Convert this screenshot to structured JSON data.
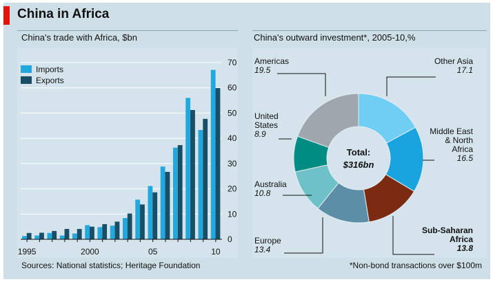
{
  "page": {
    "title": "China in Africa",
    "left_subtitle": "China's trade with Africa, $bn",
    "right_subtitle": "China's outward investment*, 2005-10,%",
    "source": "Sources: National statistics; Heritage Foundation",
    "footnote": "*Non-bond transactions over $100m"
  },
  "colors": {
    "frame": "#cfdfe7",
    "panel": "#d4e3ec",
    "imports": "#22a8dc",
    "exports": "#194f66",
    "grid": "#ffffff",
    "brand_red": "#e3120b"
  },
  "chart_data": [
    {
      "type": "bar",
      "title": "China's trade with Africa, $bn",
      "years": [
        1995,
        1996,
        1997,
        1998,
        1999,
        2000,
        2001,
        2002,
        2003,
        2004,
        2005,
        2006,
        2007,
        2008,
        2009,
        2010
      ],
      "x_tick_labels": [
        {
          "year": 1995,
          "label": "1995"
        },
        {
          "year": 2000,
          "label": "2000"
        },
        {
          "year": 2005,
          "label": "05"
        },
        {
          "year": 2010,
          "label": "10"
        }
      ],
      "series": [
        {
          "name": "Imports",
          "values": [
            1.3,
            1.5,
            2.5,
            1.5,
            2.3,
            5.6,
            4.8,
            5.4,
            8.4,
            15.7,
            21.1,
            28.8,
            36.3,
            56.0,
            43.3,
            67.1
          ]
        },
        {
          "name": "Exports",
          "values": [
            2.5,
            2.6,
            3.3,
            4.1,
            4.1,
            5.0,
            6.0,
            7.0,
            10.2,
            13.8,
            18.6,
            26.7,
            37.3,
            51.2,
            47.7,
            59.9
          ]
        }
      ],
      "y_ticks": [
        0,
        10,
        20,
        30,
        40,
        50,
        60,
        70
      ],
      "ylim": [
        0,
        70
      ],
      "legend": [
        "Imports",
        "Exports"
      ]
    },
    {
      "type": "pie",
      "variant": "donut",
      "title": "China's outward investment*, 2005-10,%",
      "center_label": "Total:",
      "center_value": "$316bn",
      "slices": [
        {
          "label": "Other Asia",
          "value": 17.1,
          "value_label": "17.1",
          "color": "#70cdf3"
        },
        {
          "label": "Middle East & North Africa",
          "value": 16.5,
          "value_label": "16.5",
          "color": "#1aa4df"
        },
        {
          "label": "Sub-Saharan Africa",
          "value": 13.8,
          "value_label": "13.8",
          "color": "#7a2b12"
        },
        {
          "label": "Europe",
          "value": 13.4,
          "value_label": "13.4",
          "color": "#5c8ea7"
        },
        {
          "label": "Australia",
          "value": 10.8,
          "value_label": "10.8",
          "color": "#6fc1c8"
        },
        {
          "label": "United States",
          "value": 8.9,
          "value_label": "8.9",
          "color": "#008c82"
        },
        {
          "label": "Americas",
          "value": 19.5,
          "value_label": "19.5",
          "color": "#9fa6ad"
        }
      ],
      "callouts": [
        {
          "name": "Other Asia",
          "lines": [
            "Other Asia"
          ],
          "value": "17.1"
        },
        {
          "name": "Middle East & North Africa",
          "lines": [
            "Middle East",
            "& North",
            "Africa"
          ],
          "value": "16.5"
        },
        {
          "name": "Sub-Saharan Africa",
          "lines": [
            "Sub-Saharan",
            "Africa"
          ],
          "value": "13.8"
        },
        {
          "name": "Europe",
          "lines": [
            "Europe"
          ],
          "value": "13.4"
        },
        {
          "name": "Australia",
          "lines": [
            "Australia"
          ],
          "value": "10.8"
        },
        {
          "name": "United States",
          "lines": [
            "United",
            "States"
          ],
          "value": "8.9"
        },
        {
          "name": "Americas",
          "lines": [
            "Americas"
          ],
          "value": "19.5"
        }
      ]
    }
  ]
}
